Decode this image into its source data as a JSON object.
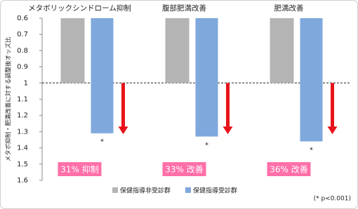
{
  "chart_data": {
    "type": "bar",
    "y_label": "メタボ抑制・肥満改善に対する調整後オッズ比",
    "categories": [
      "メタボリックシンドローム抑制",
      "腹部肥満改善",
      "肥満改善"
    ],
    "series": [
      {
        "name": "保健指導非受診群",
        "color": "#b4b4b4",
        "values": [
          1,
          1,
          1
        ]
      },
      {
        "name": "保健指導受診群",
        "color": "#7fa8dc",
        "values": [
          1.31,
          1.33,
          1.36
        ]
      }
    ],
    "ylim": [
      0.6,
      1.6
    ],
    "yticks": [
      0.6,
      0.7,
      0.8,
      0.9,
      1,
      1.1,
      1.2,
      1.3,
      1.4,
      1.5,
      1.6
    ],
    "inverted": true,
    "reference_line": 1,
    "markers": [
      "*",
      "*",
      "*"
    ],
    "effect_labels": [
      "31% 抑制",
      "33% 改善",
      "36% 改善"
    ],
    "effect_color": "#ff6fa8",
    "arrow_color": "#e8141b",
    "note": "(* p<0.001)"
  }
}
